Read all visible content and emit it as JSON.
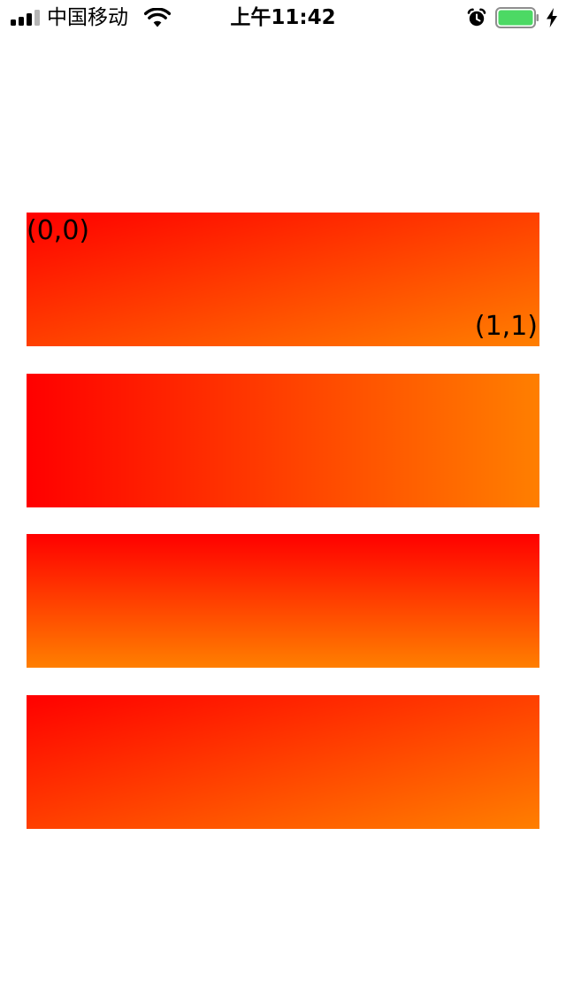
{
  "status_bar": {
    "carrier": "中国移动",
    "time": "上午11:42",
    "icons": {
      "signal": "signal-bars-icon",
      "wifi": "wifi-icon",
      "alarm": "alarm-icon",
      "battery": "battery-icon",
      "charging": "charging-bolt-icon"
    },
    "signal_bars_active": 3,
    "signal_bars_total": 4,
    "battery_level": 1.0,
    "battery_color": "#4cd964"
  },
  "panels": [
    {
      "start_color": "#ff0000",
      "end_color": "#ff7f00",
      "start_point": "(0,0)",
      "end_point": "(1,1)",
      "start_label": "(0,0)",
      "end_label": "(1,1)"
    },
    {
      "start_color": "#ff0000",
      "end_color": "#ff7f00",
      "direction": "left-to-right"
    },
    {
      "start_color": "#ff0000",
      "end_color": "#ff7f00",
      "direction": "top-to-bottom"
    },
    {
      "start_color": "#ff0000",
      "end_color": "#ff7f00",
      "direction": "top-left-to-bottom-right"
    }
  ]
}
